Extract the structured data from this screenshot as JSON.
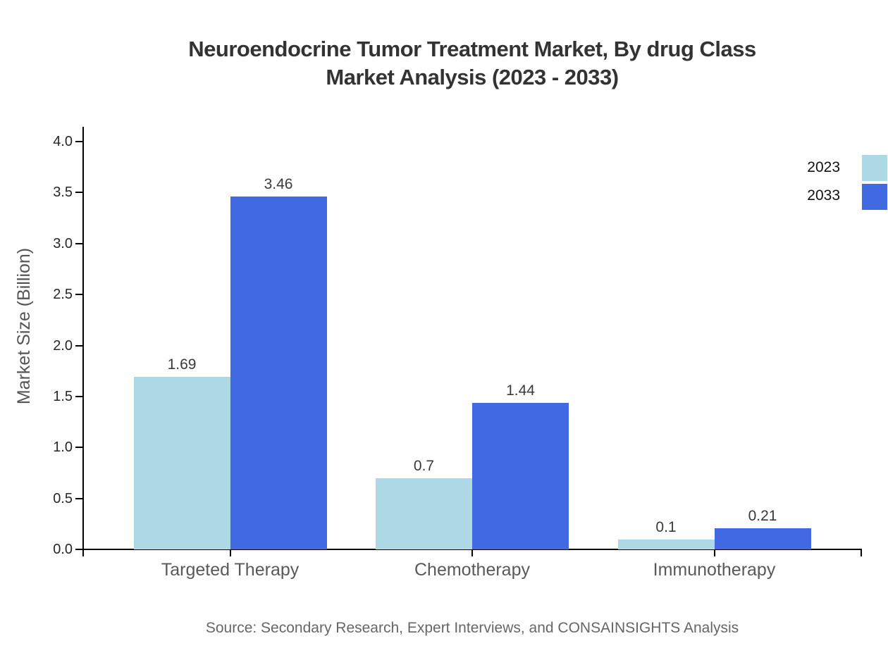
{
  "title": {
    "line1": "Neuroendocrine Tumor Treatment Market, By drug Class",
    "line2": "Market Analysis (2023 - 2033)"
  },
  "source": "Source: Secondary Research, Expert Interviews, and CONSAINSIGHTS Analysis",
  "legend": [
    {
      "label": "2023",
      "color": "#ADD8E6"
    },
    {
      "label": "2033",
      "color": "#4169E1"
    }
  ],
  "colors": {
    "series_2023": "#ADD8E6",
    "series_2033": "#4169E1",
    "axis": "#000000",
    "title_text": "#333333",
    "tick_text": "#262626",
    "value_text": "#3a3a3a",
    "category_text": "#595959",
    "muted_text": "#666666"
  },
  "chart_data": {
    "type": "bar",
    "title": "Neuroendocrine Tumor Treatment Market, By drug Class Market Analysis (2023 - 2033)",
    "categories": [
      "Targeted Therapy",
      "Chemotherapy",
      "Immunotherapy"
    ],
    "series": [
      {
        "name": "2023",
        "color": "#ADD8E6",
        "values": [
          1.69,
          0.7,
          0.1
        ],
        "value_labels": [
          "1.69",
          "0.7",
          "0.1"
        ]
      },
      {
        "name": "2033",
        "color": "#4169E1",
        "values": [
          3.46,
          1.44,
          0.21
        ],
        "value_labels": [
          "3.46",
          "1.44",
          "0.21"
        ]
      }
    ],
    "xlabel": "",
    "ylabel": "Market Size (Billion)",
    "ylim": [
      0,
      4
    ],
    "yticks": [
      "0.0",
      "0.5",
      "1.0",
      "1.5",
      "2.0",
      "2.5",
      "3.0",
      "3.5",
      "4.0"
    ],
    "grid": false,
    "legend_position": "top-right",
    "value_labels_shown": true
  }
}
